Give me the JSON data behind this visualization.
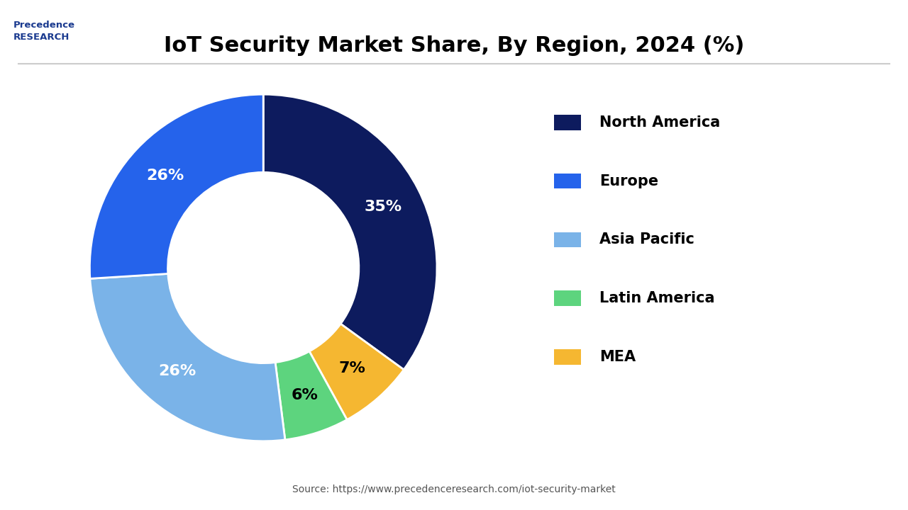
{
  "title": "IoT Security Market Share, By Region, 2024 (%)",
  "labels": [
    "North America",
    "Europe",
    "Asia Pacific",
    "Latin America",
    "MEA"
  ],
  "values": [
    35,
    26,
    26,
    6,
    7
  ],
  "colors": [
    "#0d1b5e",
    "#2563eb",
    "#7ab3e8",
    "#5dd47e",
    "#f5b731"
  ],
  "ordered_values": [
    35,
    7,
    6,
    26,
    26
  ],
  "ordered_colors": [
    "#0d1b5e",
    "#f5b731",
    "#5dd47e",
    "#7ab3e8",
    "#2563eb"
  ],
  "ordered_text_colors": [
    "white",
    "black",
    "black",
    "white",
    "white"
  ],
  "ordered_pcts": [
    "35%",
    "7%",
    "6%",
    "26%",
    "26%"
  ],
  "background_color": "#ffffff",
  "source_text": "Source: https://www.precedenceresearch.com/iot-security-market",
  "title_fontsize": 22,
  "legend_fontsize": 15,
  "label_fontsize": 16
}
